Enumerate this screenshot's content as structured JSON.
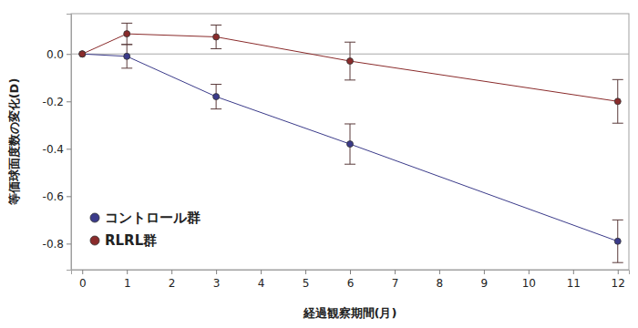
{
  "chart_data": {
    "type": "line",
    "x_label": "経過観察期間(月)",
    "y_label": "等価球面度数の変化(D)",
    "x": [
      0,
      1,
      3,
      6,
      12
    ],
    "series": [
      {
        "name": "コントロール群",
        "color": "#3b3b8a",
        "marker": "circle",
        "values": [
          0,
          -0.01,
          -0.18,
          -0.38,
          -0.79
        ],
        "errors": [
          null,
          0.05,
          0.052,
          0.085,
          0.09
        ]
      },
      {
        "name": "RLRL群",
        "color": "#8a2b2b",
        "marker": "circle",
        "values": [
          0,
          0.085,
          0.072,
          -0.03,
          -0.2
        ],
        "errors": [
          null,
          0.045,
          0.05,
          0.08,
          0.092
        ]
      }
    ],
    "xlim": [
      -0.25,
      12.25
    ],
    "xticks": [
      0,
      1,
      2,
      3,
      4,
      5,
      6,
      7,
      8,
      9,
      10,
      11,
      12
    ],
    "ylim": [
      -0.91,
      0.17
    ],
    "yticks": [
      {
        "value": 0,
        "label": "0.0"
      },
      -0.2,
      -0.4,
      -0.6,
      -0.8
    ],
    "grid": false,
    "legend": "lower left"
  }
}
